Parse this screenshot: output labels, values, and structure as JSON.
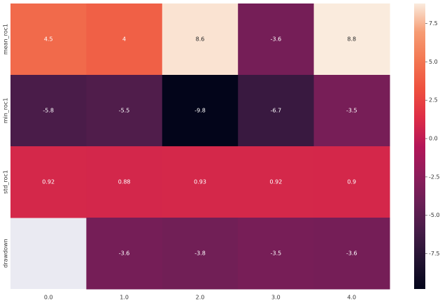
{
  "chart_data": {
    "type": "heatmap",
    "rows": [
      "mean_roc1",
      "min_roc1",
      "std_roc1",
      "drawdown"
    ],
    "categories": [
      "0.0",
      "1.0",
      "2.0",
      "3.0",
      "4.0"
    ],
    "values": [
      [
        4.5,
        4,
        8.6,
        -3.6,
        8.8
      ],
      [
        -5.8,
        -5.5,
        -9.8,
        -6.7,
        -3.5
      ],
      [
        0.92,
        0.88,
        0.93,
        0.92,
        0.9
      ],
      [
        null,
        -3.6,
        -3.8,
        -3.5,
        -3.6
      ]
    ],
    "colormap": "rocket",
    "clim": [
      -9.8,
      8.8
    ],
    "cticks": [
      7.5,
      {
        "value": 5,
        "label": "5.0"
      },
      2.5,
      {
        "value": 0,
        "label": "0.0"
      },
      -2.5,
      {
        "value": -5,
        "label": "-5.0"
      },
      -7.5
    ],
    "annotate": true
  }
}
